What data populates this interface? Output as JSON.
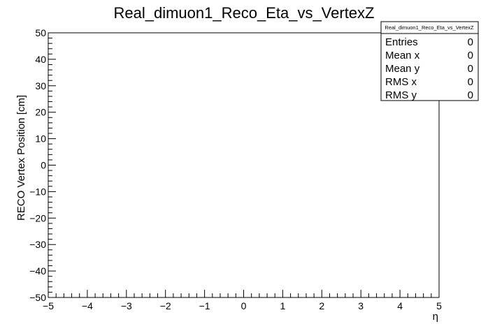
{
  "chart_data": {
    "type": "scatter",
    "title": "Real_dimuon1_Reco_Eta_vs_VertexZ",
    "xlabel": "η",
    "ylabel": "RECO Vertex Position [cm]",
    "xlim": [
      -5,
      5
    ],
    "ylim": [
      -50,
      50
    ],
    "x_ticks": [
      -5,
      -4,
      -3,
      -2,
      -1,
      0,
      1,
      2,
      3,
      4,
      5
    ],
    "x_tick_labels": [
      "−5",
      "−4",
      "−3",
      "−2",
      "−1",
      "0",
      "1",
      "2",
      "3",
      "4",
      "5"
    ],
    "y_ticks": [
      50,
      40,
      30,
      20,
      10,
      0,
      -10,
      -20,
      -30,
      -40,
      -50
    ],
    "y_tick_labels": [
      "50",
      "40",
      "30",
      "20",
      "10",
      "0",
      "−10",
      "−20",
      "−30",
      "−40",
      "−50"
    ],
    "points": [],
    "grid": false,
    "stats_box": {
      "name": "Real_dimuon1_Reco_Eta_vs_VertexZ",
      "placement": "top-right",
      "rows": [
        {
          "label": "Entries",
          "value": "0"
        },
        {
          "label": "Mean x",
          "value": "0"
        },
        {
          "label": "Mean y",
          "value": "0"
        },
        {
          "label": "RMS x",
          "value": "0"
        },
        {
          "label": "RMS y",
          "value": "0"
        }
      ]
    }
  }
}
